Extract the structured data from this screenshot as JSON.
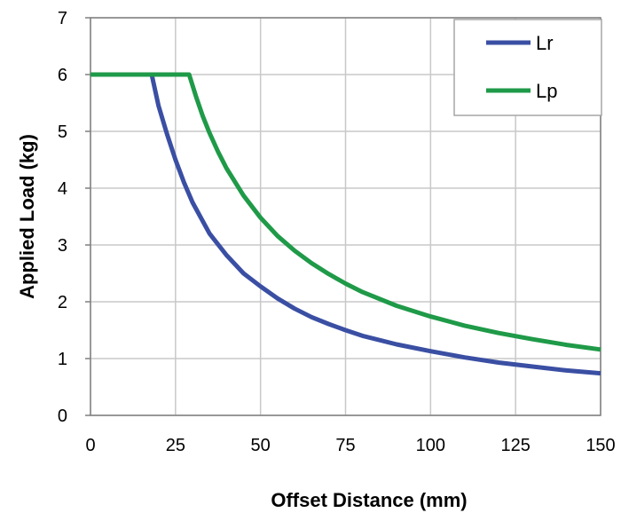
{
  "chart_data": {
    "type": "line",
    "title": "",
    "xlabel": "Offset Distance (mm)",
    "ylabel": "Applied Load (kg)",
    "xlim": [
      0,
      150
    ],
    "ylim": [
      0,
      7
    ],
    "x_ticks": [
      "0",
      "25",
      "50",
      "75",
      "100",
      "125",
      "150"
    ],
    "y_ticks": [
      "0",
      "1",
      "2",
      "3",
      "4",
      "5",
      "6",
      "7"
    ],
    "grid": true,
    "legend_position": "top-right",
    "series": [
      {
        "name": "Lr",
        "color": "#3a4fa3",
        "points": [
          [
            0,
            6
          ],
          [
            18,
            6
          ],
          [
            20,
            5.45
          ],
          [
            22.5,
            4.95
          ],
          [
            25,
            4.5
          ],
          [
            27.5,
            4.1
          ],
          [
            30,
            3.75
          ],
          [
            35,
            3.2
          ],
          [
            40,
            2.82
          ],
          [
            45,
            2.5
          ],
          [
            50,
            2.27
          ],
          [
            55,
            2.06
          ],
          [
            60,
            1.88
          ],
          [
            65,
            1.73
          ],
          [
            70,
            1.61
          ],
          [
            75,
            1.5
          ],
          [
            80,
            1.4
          ],
          [
            90,
            1.25
          ],
          [
            100,
            1.13
          ],
          [
            110,
            1.02
          ],
          [
            120,
            0.93
          ],
          [
            130,
            0.86
          ],
          [
            140,
            0.79
          ],
          [
            150,
            0.74
          ]
        ]
      },
      {
        "name": "Lp",
        "color": "#1f9a48",
        "points": [
          [
            0,
            6
          ],
          [
            29,
            6
          ],
          [
            31,
            5.62
          ],
          [
            33,
            5.27
          ],
          [
            35,
            4.97
          ],
          [
            37.5,
            4.64
          ],
          [
            40,
            4.35
          ],
          [
            45,
            3.87
          ],
          [
            50,
            3.48
          ],
          [
            55,
            3.16
          ],
          [
            60,
            2.9
          ],
          [
            65,
            2.68
          ],
          [
            70,
            2.49
          ],
          [
            75,
            2.32
          ],
          [
            80,
            2.17
          ],
          [
            90,
            1.93
          ],
          [
            100,
            1.74
          ],
          [
            110,
            1.58
          ],
          [
            120,
            1.45
          ],
          [
            130,
            1.34
          ],
          [
            140,
            1.24
          ],
          [
            150,
            1.16
          ]
        ]
      }
    ]
  }
}
